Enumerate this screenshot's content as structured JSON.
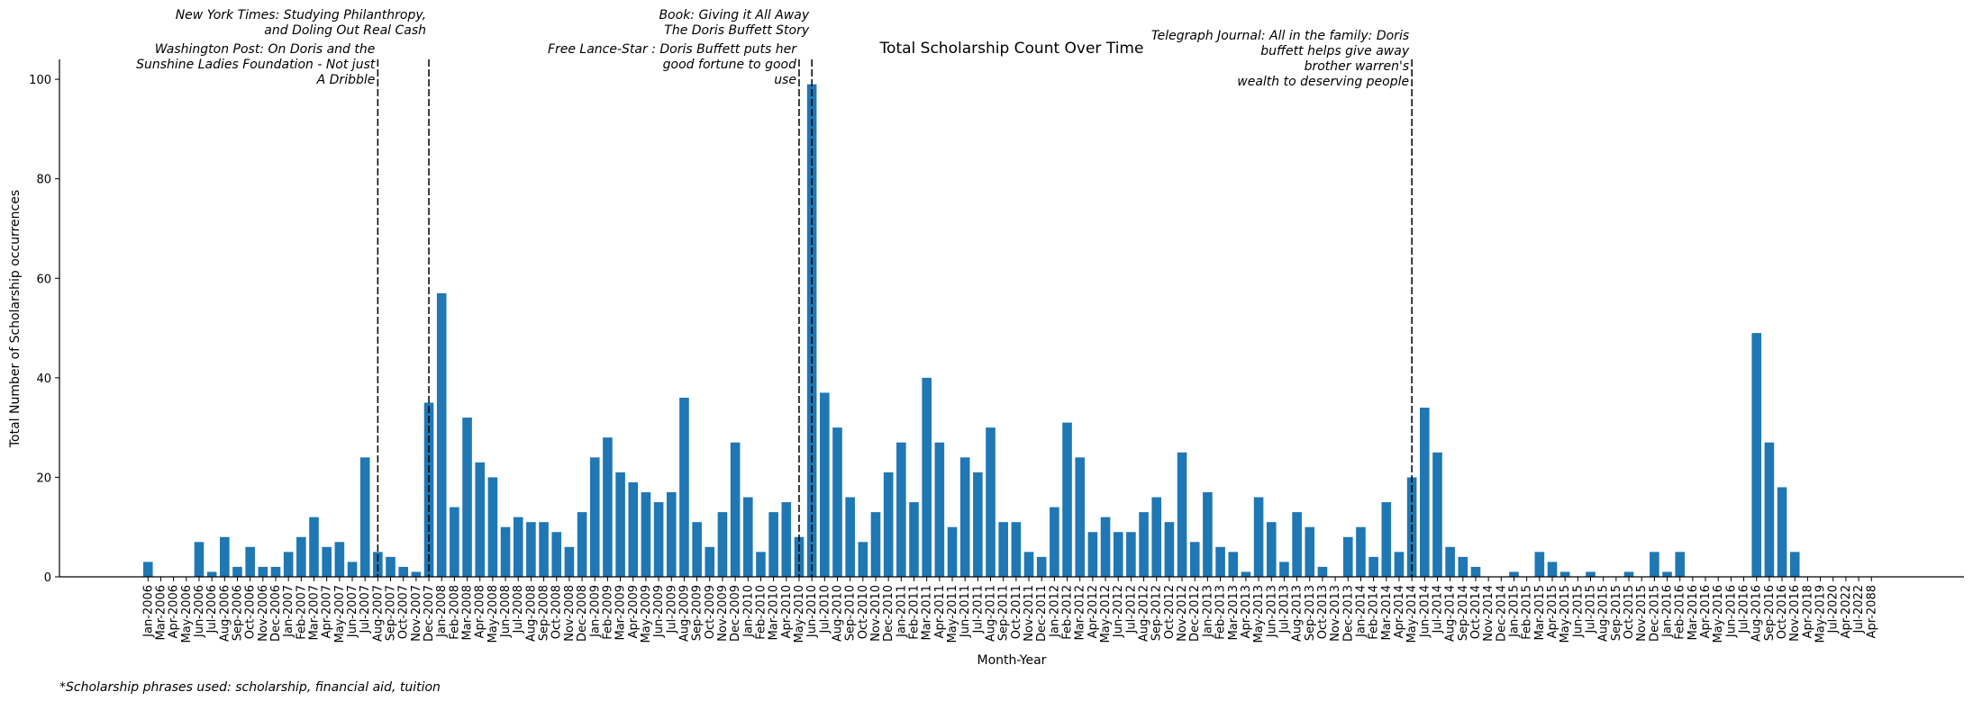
{
  "chart_data": {
    "type": "bar",
    "title": "Total Scholarship Count Over Time",
    "xlabel": "Month-Year",
    "ylabel": "Total Number of Scholarship occurrences",
    "ylim": [
      0,
      104
    ],
    "yticks": [
      0,
      20,
      40,
      60,
      80,
      100
    ],
    "bar_color": "#1f77b4",
    "grid": false,
    "categories": [
      "Jan-2006",
      "Mar-2006",
      "Apr-2006",
      "May-2006",
      "Jun-2006",
      "Jul-2006",
      "Aug-2006",
      "Sep-2006",
      "Oct-2006",
      "Nov-2006",
      "Dec-2006",
      "Jan-2007",
      "Feb-2007",
      "Mar-2007",
      "Apr-2007",
      "May-2007",
      "Jun-2007",
      "Jul-2007",
      "Aug-2007",
      "Sep-2007",
      "Oct-2007",
      "Nov-2007",
      "Dec-2007",
      "Jan-2008",
      "Feb-2008",
      "Mar-2008",
      "Apr-2008",
      "May-2008",
      "Jun-2008",
      "Jul-2008",
      "Aug-2008",
      "Sep-2008",
      "Oct-2008",
      "Nov-2008",
      "Dec-2008",
      "Jan-2009",
      "Feb-2009",
      "Mar-2009",
      "Apr-2009",
      "May-2009",
      "Jun-2009",
      "Jul-2009",
      "Aug-2009",
      "Sep-2009",
      "Oct-2009",
      "Nov-2009",
      "Dec-2009",
      "Jan-2010",
      "Feb-2010",
      "Mar-2010",
      "Apr-2010",
      "May-2010",
      "Jun-2010",
      "Jul-2010",
      "Aug-2010",
      "Sep-2010",
      "Oct-2010",
      "Nov-2010",
      "Dec-2010",
      "Jan-2011",
      "Feb-2011",
      "Mar-2011",
      "Apr-2011",
      "May-2011",
      "Jun-2011",
      "Jul-2011",
      "Aug-2011",
      "Sep-2011",
      "Oct-2011",
      "Nov-2011",
      "Dec-2011",
      "Jan-2012",
      "Feb-2012",
      "Mar-2012",
      "Apr-2012",
      "May-2012",
      "Jun-2012",
      "Jul-2012",
      "Aug-2012",
      "Sep-2012",
      "Oct-2012",
      "Nov-2012",
      "Dec-2012",
      "Jan-2013",
      "Feb-2013",
      "Mar-2013",
      "Apr-2013",
      "May-2013",
      "Jun-2013",
      "Jul-2013",
      "Aug-2013",
      "Sep-2013",
      "Oct-2013",
      "Nov-2013",
      "Dec-2013",
      "Jan-2014",
      "Feb-2014",
      "Mar-2014",
      "Apr-2014",
      "May-2014",
      "Jun-2014",
      "Jul-2014",
      "Aug-2014",
      "Sep-2014",
      "Oct-2014",
      "Nov-2014",
      "Dec-2014",
      "Jan-2015",
      "Feb-2015",
      "Mar-2015",
      "Apr-2015",
      "May-2015",
      "Jun-2015",
      "Jul-2015",
      "Aug-2015",
      "Sep-2015",
      "Oct-2015",
      "Nov-2015",
      "Dec-2015",
      "Jan-2016",
      "Feb-2016",
      "Mar-2016",
      "Apr-2016",
      "May-2016",
      "Jun-2016",
      "Jul-2016",
      "Aug-2016",
      "Sep-2016",
      "Oct-2016",
      "Nov-2016",
      "Apr-2018",
      "May-2019",
      "Jul-2020",
      "Apr-2022",
      "Jul-2022",
      "Apr-2088"
    ],
    "values": [
      3,
      0,
      0,
      0,
      7,
      1,
      8,
      2,
      6,
      2,
      2,
      5,
      8,
      12,
      6,
      7,
      3,
      24,
      5,
      4,
      2,
      1,
      35,
      57,
      14,
      32,
      23,
      20,
      10,
      12,
      11,
      11,
      9,
      6,
      13,
      24,
      28,
      21,
      19,
      17,
      15,
      17,
      36,
      11,
      6,
      13,
      27,
      16,
      5,
      13,
      15,
      8,
      99,
      37,
      30,
      16,
      7,
      13,
      21,
      27,
      15,
      40,
      27,
      10,
      24,
      21,
      30,
      11,
      11,
      5,
      4,
      14,
      31,
      24,
      9,
      12,
      9,
      9,
      13,
      16,
      11,
      25,
      7,
      17,
      6,
      5,
      1,
      16,
      11,
      3,
      13,
      10,
      2,
      0,
      8,
      10,
      4,
      15,
      5,
      20,
      34,
      25,
      6,
      4,
      2,
      0,
      0,
      1,
      0,
      5,
      3,
      1,
      0,
      1,
      0,
      0,
      1,
      0,
      5,
      1,
      5,
      0,
      0,
      0,
      0,
      0,
      49,
      27,
      18,
      5,
      0,
      0,
      0,
      0,
      0,
      0
    ],
    "events": [
      {
        "index": 18,
        "label_lines": [
          "Washington Post: On Doris and the",
          "Sunshine Ladies  Foundation - Not just",
          "A Dribble"
        ],
        "label_row": "lower"
      },
      {
        "index": 22,
        "label_lines": [
          "New York Times: Studying Philanthropy,",
          "and Doling Out Real Cash"
        ],
        "label_row": "upper"
      },
      {
        "index": 51,
        "label_lines": [
          "Free Lance-Star : Doris Buffett puts her",
          "good fortune to good",
          "use"
        ],
        "label_row": "lower"
      },
      {
        "index": 52,
        "label_lines": [
          "Book: Giving it All Away",
          "The Doris Buffett Story"
        ],
        "label_row": "upper"
      },
      {
        "index": 99,
        "label_lines": [
          "Telegraph Journal: All in the family: Doris",
          "buffett helps give away",
          "brother warren's",
          "wealth to deserving people"
        ],
        "label_row": "middle"
      }
    ],
    "footnote": "*Scholarship phrases used: scholarship, financial aid, tuition"
  }
}
